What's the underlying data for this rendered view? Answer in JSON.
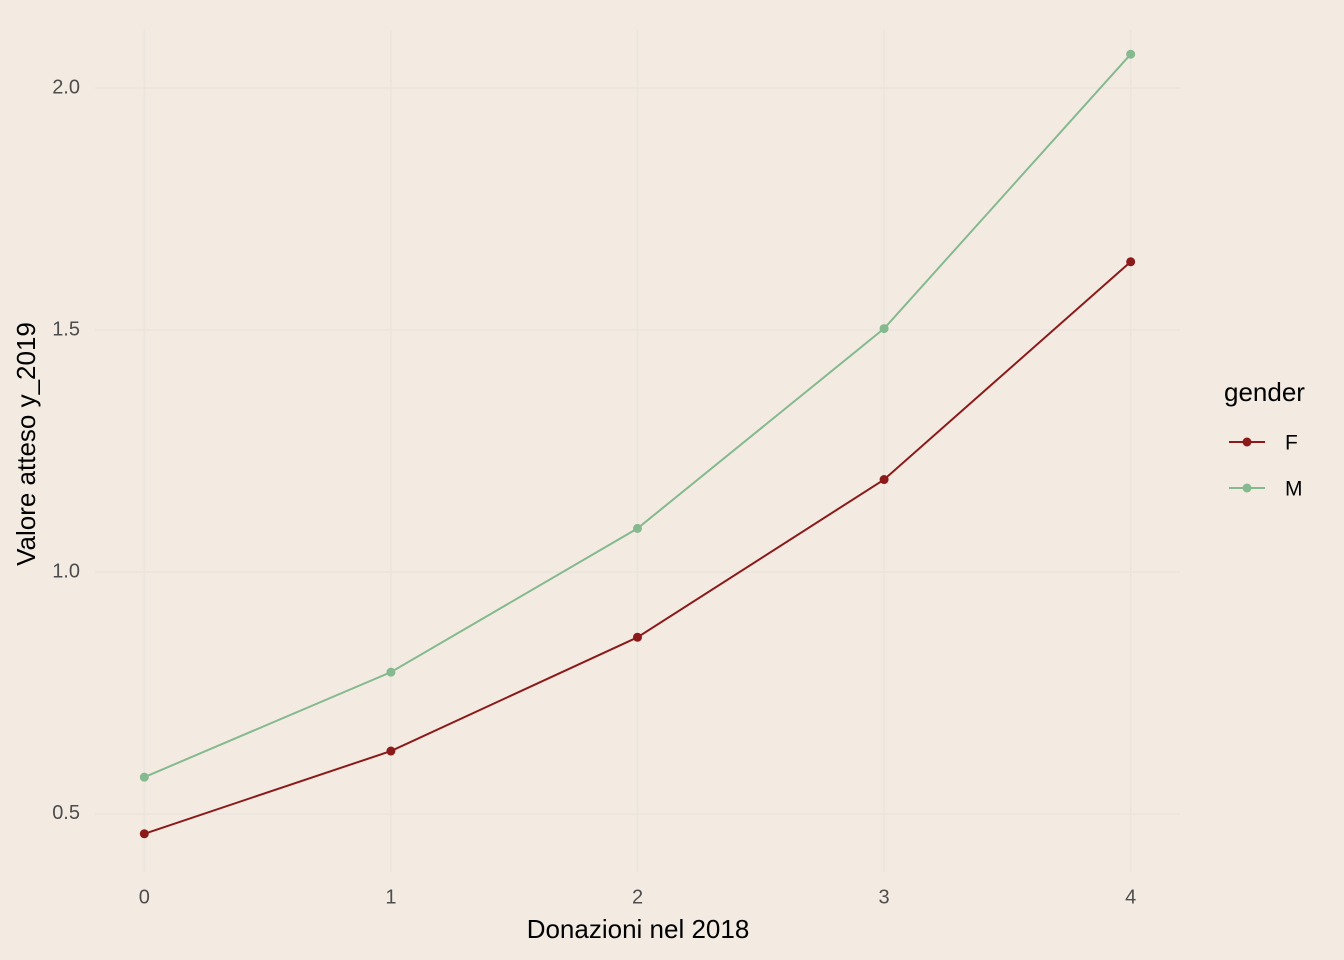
{
  "chart_data": {
    "type": "line",
    "x_label": "Donazioni nel 2018",
    "y_label": "Valore atteso y_2019",
    "x": [
      0,
      1,
      2,
      3,
      4
    ],
    "series": [
      {
        "name": "F",
        "color": "#8b1a1a",
        "values": [
          0.459,
          0.63,
          0.865,
          1.191,
          1.641
        ]
      },
      {
        "name": "M",
        "color": "#85b98e",
        "values": [
          0.576,
          0.793,
          1.09,
          1.503,
          2.07
        ]
      }
    ],
    "xlim": [
      -0.2,
      4.2
    ],
    "xticks": [
      0,
      1,
      2,
      3,
      4
    ],
    "ylim": [
      0.38,
      2.12
    ],
    "yticks": [
      {
        "value": 0.5,
        "label": "0.5"
      },
      {
        "value": 1.0,
        "label": "1.0"
      },
      {
        "value": 1.5,
        "label": "1.5"
      },
      {
        "value": 2.0,
        "label": "2.0"
      }
    ],
    "grid": true,
    "legend_title": "gender",
    "legend_position": "right"
  }
}
